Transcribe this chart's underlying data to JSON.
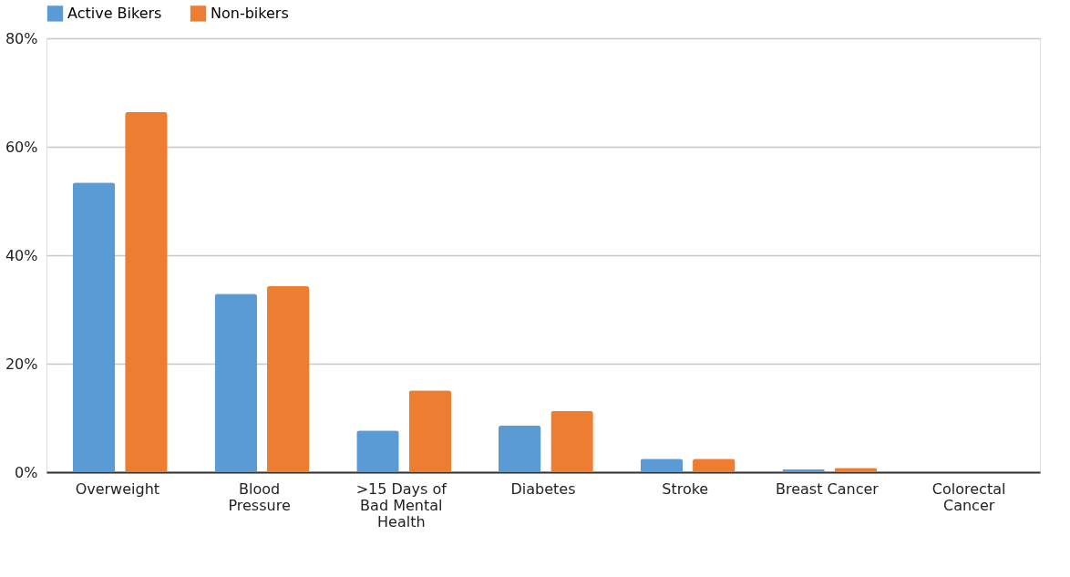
{
  "chart_data": {
    "type": "bar",
    "categories": [
      "Overweight",
      "Blood Pressure",
      ">15 Days of Bad Mental Health",
      "Diabetes",
      "Stroke",
      "Breast Cancer",
      "Colorectal Cancer"
    ],
    "series": [
      {
        "name": "Active Bikers",
        "color": "#5b9bd5",
        "values": [
          53.4,
          32.9,
          7.7,
          8.6,
          2.5,
          0.5,
          0
        ]
      },
      {
        "name": "Non-bikers",
        "color": "#ed7d31",
        "values": [
          66.4,
          34.3,
          15.1,
          11.3,
          2.5,
          0.8,
          0
        ]
      }
    ],
    "ylim": [
      0,
      80
    ],
    "yticks": [
      {
        "value": 0,
        "label": "0%"
      },
      {
        "value": 20,
        "label": "20%"
      },
      {
        "value": 40,
        "label": "40%"
      },
      {
        "value": 60,
        "label": "60%"
      },
      {
        "value": 80,
        "label": "80%"
      }
    ],
    "grid": "y",
    "legend": "top"
  }
}
